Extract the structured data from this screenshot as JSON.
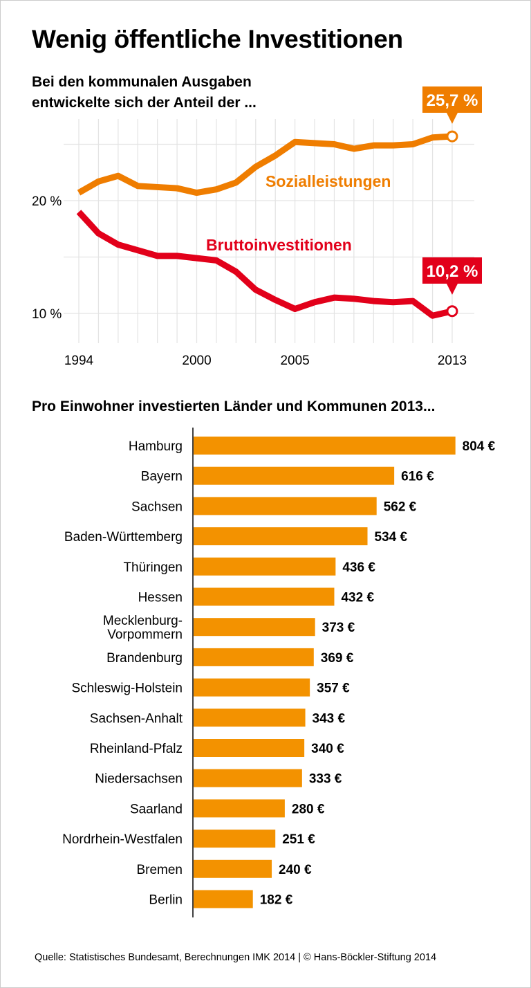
{
  "title": "Wenig öffentliche Investitionen",
  "source": "Quelle: Statistisches Bundesamt, Berechnungen IMK 2014 | © Hans-Böckler-Stiftung 2014",
  "colors": {
    "sozial": "#ef7d00",
    "brutto": "#e2001a",
    "bars": "#f39200",
    "grid": "#e3e3e3"
  },
  "chart_data": [
    {
      "type": "line",
      "title": "Bei den kommunalen Ausgaben entwickelte sich der Anteil der ...",
      "subtitle_lines": [
        "Bei den kommunalen Ausgaben",
        "entwickelte sich der Anteil der ..."
      ],
      "x": [
        1994,
        1995,
        1996,
        1997,
        1998,
        1999,
        2000,
        2001,
        2002,
        2003,
        2004,
        2005,
        2006,
        2007,
        2008,
        2009,
        2010,
        2011,
        2012,
        2013
      ],
      "x_ticks": [
        {
          "value": 1994,
          "label": "1994"
        },
        {
          "value": 2000,
          "label": "2000"
        },
        {
          "value": 2005,
          "label": "2005"
        },
        {
          "value": 2013,
          "label": "2013"
        }
      ],
      "y_ticks": [
        {
          "value": 20,
          "label": "20 %"
        },
        {
          "value": 10,
          "label": "10 %"
        }
      ],
      "ylim": [
        7,
        30
      ],
      "grid": true,
      "series": [
        {
          "name": "Sozialleistungen",
          "color": "#ef7d00",
          "values": [
            20.7,
            21.7,
            22.2,
            21.3,
            21.2,
            21.1,
            20.7,
            21.0,
            21.6,
            23.0,
            24.0,
            25.2,
            25.1,
            25.0,
            24.6,
            24.9,
            24.9,
            25.0,
            25.6,
            25.7
          ],
          "end_label": "25,7 %"
        },
        {
          "name": "Bruttoinvestitionen",
          "color": "#e2001a",
          "values": [
            19.0,
            17.1,
            16.1,
            15.6,
            15.1,
            15.1,
            14.9,
            14.7,
            13.7,
            12.1,
            11.2,
            10.4,
            11.0,
            11.4,
            11.3,
            11.1,
            11.0,
            11.1,
            9.8,
            10.2
          ],
          "end_label": "10,2 %"
        }
      ]
    },
    {
      "type": "bar",
      "orientation": "horizontal",
      "title": "Pro Einwohner investierten Länder und Kommunen 2013...",
      "categories": [
        "Hamburg",
        "Bayern",
        "Sachsen",
        "Baden-Württemberg",
        "Thüringen",
        "Hessen",
        "Mecklenburg-\nVorpommern",
        "Brandenburg",
        "Schleswig-Holstein",
        "Sachsen-Anhalt",
        "Rheinland-Pfalz",
        "Niedersachsen",
        "Saarland",
        "Nordrhein-Westfalen",
        "Bremen",
        "Berlin"
      ],
      "values": [
        804,
        616,
        562,
        534,
        436,
        432,
        373,
        369,
        357,
        343,
        340,
        333,
        280,
        251,
        240,
        182
      ],
      "labels": [
        "804 €",
        "616 €",
        "562 €",
        "534 €",
        "436 €",
        "432 €",
        "373 €",
        "369 €",
        "357 €",
        "343 €",
        "340 €",
        "333 €",
        "280 €",
        "251 €",
        "240 €",
        "182 €"
      ],
      "unit": "€"
    }
  ]
}
